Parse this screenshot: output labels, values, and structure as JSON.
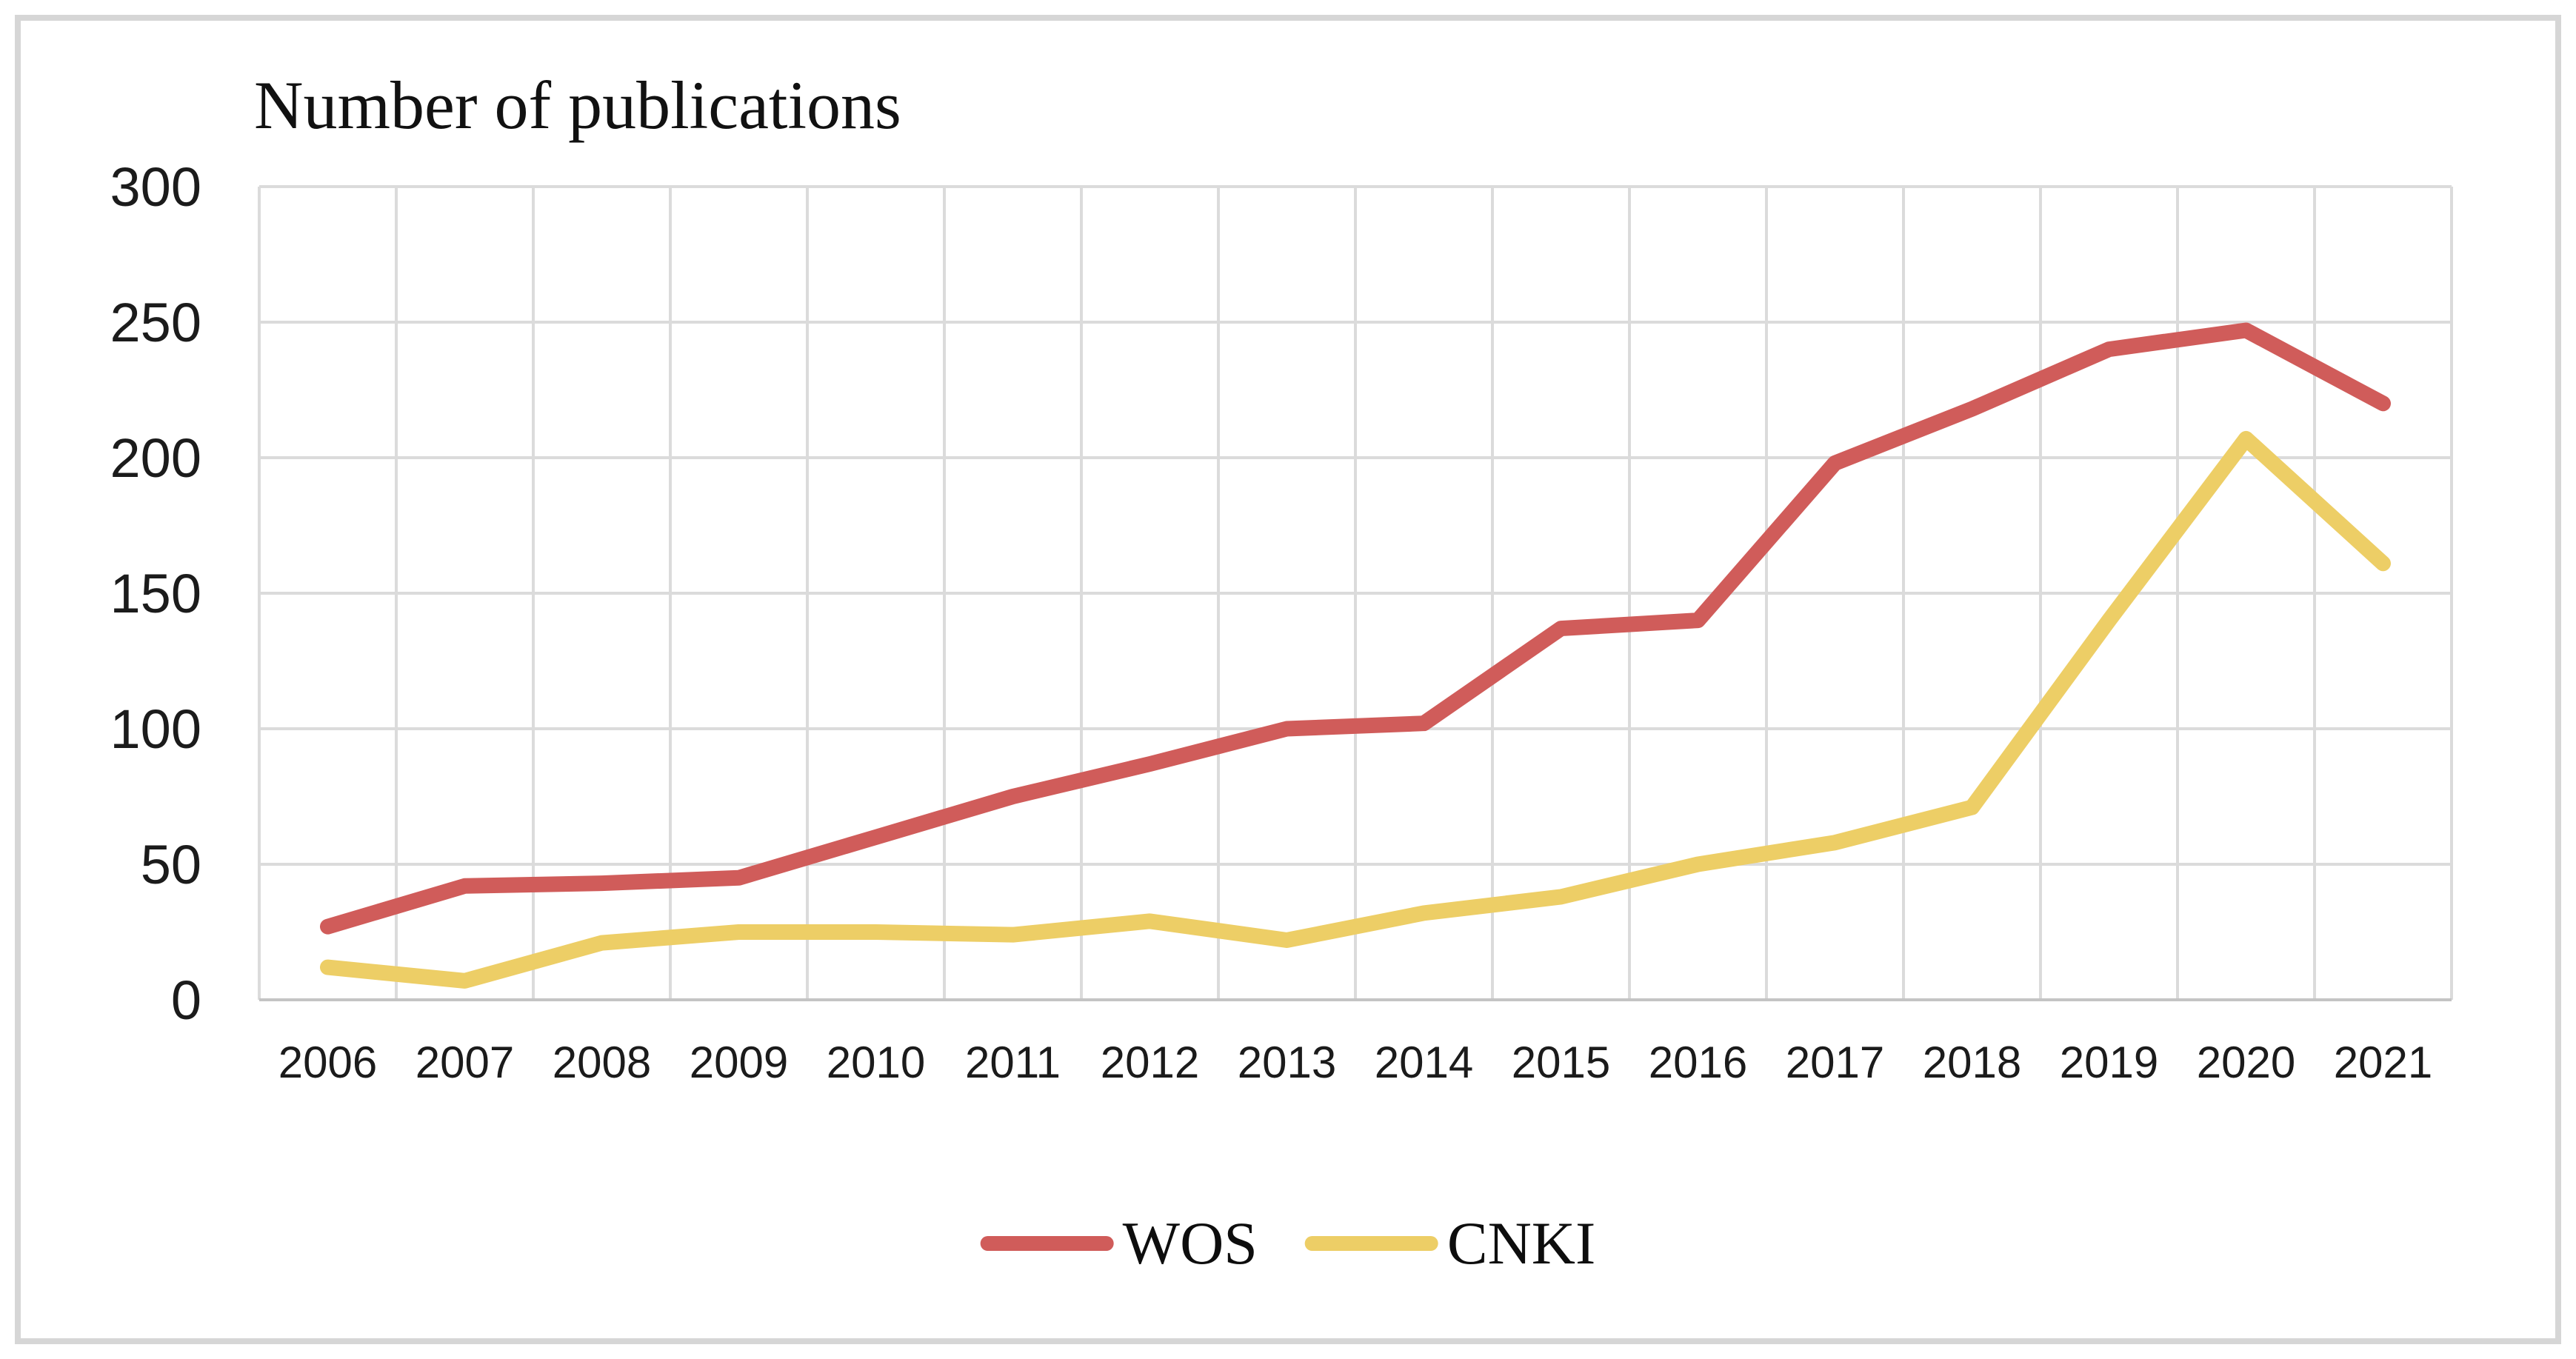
{
  "figure": {
    "background": "#ffffff",
    "border_color": "#D6D6D6"
  },
  "chart_data": {
    "type": "line",
    "title": "Number of publications",
    "categories": [
      "2006",
      "2007",
      "2008",
      "2009",
      "2010",
      "2011",
      "2012",
      "2013",
      "2014",
      "2015",
      "2016",
      "2017",
      "2018",
      "2019",
      "2020",
      "2021"
    ],
    "series": [
      {
        "name": "WOS",
        "color": "#D05C5A",
        "values": [
          27,
          42,
          43,
          45,
          60,
          75,
          87,
          100,
          102,
          137,
          140,
          198,
          218,
          240,
          247,
          220
        ]
      },
      {
        "name": "CNKI",
        "color": "#EDCE66",
        "values": [
          12,
          7,
          21,
          25,
          25,
          24,
          29,
          22,
          32,
          38,
          50,
          58,
          71,
          140,
          207,
          161
        ]
      }
    ],
    "ylim": [
      0,
      300
    ],
    "ytick_step": 50,
    "yticks": [
      0,
      50,
      100,
      150,
      200,
      250,
      300
    ],
    "grid": true,
    "grid_color": "#DBDBDB",
    "axis_color": "#C4C4C4",
    "tick_label_color": "#1b1b1b",
    "legend_position": "bottom-center"
  }
}
